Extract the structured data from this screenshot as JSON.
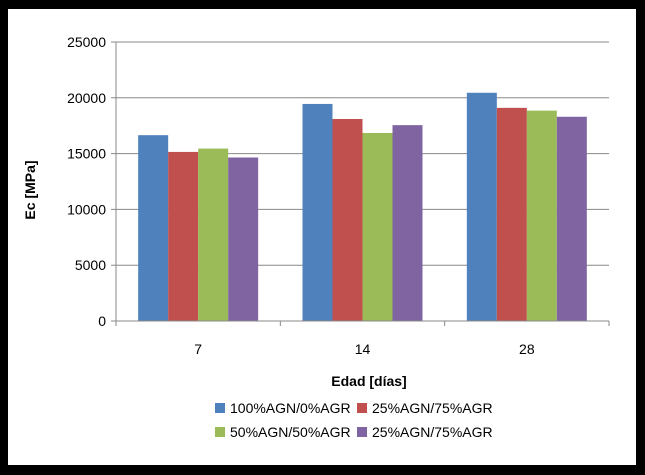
{
  "chart_data": {
    "type": "bar",
    "title": "",
    "xlabel": "Edad [días]",
    "ylabel": "Ec [MPa]",
    "categories": [
      "7",
      "14",
      "28"
    ],
    "ylim": [
      0,
      25000
    ],
    "yticks": [
      0,
      5000,
      10000,
      15000,
      20000,
      25000
    ],
    "grid": true,
    "legend": "bottom",
    "series": [
      {
        "name": "100%AGN/0%AGR",
        "color": "#4f81bd",
        "values": [
          16650,
          19450,
          20450
        ]
      },
      {
        "name": "25%AGN/75%AGR",
        "color": "#c0504d",
        "values": [
          15150,
          18100,
          19100
        ]
      },
      {
        "name": "50%AGN/50%AGR",
        "color": "#9bbb59",
        "values": [
          15450,
          16850,
          18850
        ]
      },
      {
        "name": "25%AGN/75%AGR",
        "color": "#8064a2",
        "values": [
          14650,
          17550,
          18300
        ]
      }
    ]
  }
}
